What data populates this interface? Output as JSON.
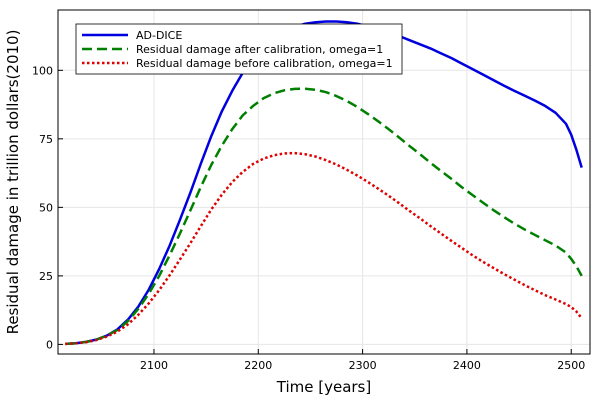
{
  "chart_data": {
    "type": "line",
    "title": "",
    "xlabel": "Time [years]",
    "ylabel": "Residual damage in trillion dollars(2010)",
    "xlim": [
      2008,
      2518
    ],
    "ylim": [
      -3.5,
      122
    ],
    "xticks": [
      2100,
      2200,
      2300,
      2400,
      2500
    ],
    "yticks": [
      0,
      25,
      50,
      75,
      100
    ],
    "grid": true,
    "legend_position": "top-left",
    "x": [
      2015,
      2025,
      2035,
      2045,
      2055,
      2065,
      2075,
      2085,
      2095,
      2105,
      2115,
      2125,
      2135,
      2145,
      2155,
      2165,
      2175,
      2185,
      2195,
      2205,
      2215,
      2225,
      2235,
      2245,
      2255,
      2265,
      2275,
      2285,
      2295,
      2305,
      2315,
      2325,
      2335,
      2345,
      2355,
      2365,
      2375,
      2385,
      2395,
      2405,
      2415,
      2425,
      2435,
      2445,
      2455,
      2465,
      2475,
      2485,
      2495,
      2500,
      2505,
      2510
    ],
    "series": [
      {
        "name": "AD-DICE",
        "color": "#0000e0",
        "dash": "solid",
        "values": [
          0.2,
          0.4,
          0.9,
          1.8,
          3.2,
          5.5,
          9.0,
          13.8,
          20.0,
          27.5,
          36.0,
          45.5,
          55.5,
          66.0,
          76.0,
          85.0,
          92.5,
          99.0,
          104.5,
          108.5,
          111.5,
          114.0,
          115.8,
          117.0,
          117.5,
          117.8,
          117.8,
          117.5,
          117.0,
          116.0,
          115.0,
          113.8,
          112.5,
          111.0,
          109.5,
          108.0,
          106.2,
          104.5,
          102.5,
          100.5,
          98.5,
          96.5,
          94.5,
          92.6,
          90.8,
          89.0,
          87.0,
          84.5,
          80.5,
          76.5,
          71.0,
          64.5
        ]
      },
      {
        "name": "Residual damage after calibration, omega=1",
        "color": "#008000",
        "dash": "dashed",
        "values": [
          0.2,
          0.4,
          0.9,
          1.8,
          3.2,
          5.3,
          8.5,
          13.0,
          18.5,
          25.0,
          32.5,
          40.5,
          49.0,
          57.5,
          65.5,
          72.5,
          78.5,
          83.5,
          87.0,
          89.8,
          91.6,
          92.7,
          93.2,
          93.3,
          92.9,
          92.0,
          90.6,
          88.8,
          86.6,
          84.1,
          81.4,
          78.5,
          75.5,
          72.4,
          69.4,
          66.3,
          63.3,
          60.4,
          57.4,
          54.6,
          51.8,
          49.1,
          46.6,
          44.2,
          42.0,
          40.0,
          38.0,
          36.1,
          33.5,
          31.2,
          28.5,
          25.0
        ]
      },
      {
        "name": "Residual damage before calibration, omega=1",
        "color": "#e00000",
        "dash": "dotted",
        "values": [
          0.2,
          0.4,
          0.8,
          1.6,
          2.9,
          4.7,
          7.3,
          10.8,
          15.0,
          19.8,
          25.2,
          31.0,
          37.0,
          43.2,
          49.2,
          54.6,
          59.2,
          62.9,
          65.8,
          67.8,
          69.0,
          69.7,
          69.8,
          69.4,
          68.5,
          67.2,
          65.6,
          63.7,
          61.6,
          59.3,
          56.8,
          54.2,
          51.5,
          48.7,
          46.0,
          43.2,
          40.5,
          37.8,
          35.2,
          32.6,
          30.2,
          28.0,
          25.8,
          23.7,
          21.7,
          19.8,
          18.0,
          16.4,
          14.7,
          13.6,
          12.0,
          9.5
        ]
      }
    ]
  }
}
